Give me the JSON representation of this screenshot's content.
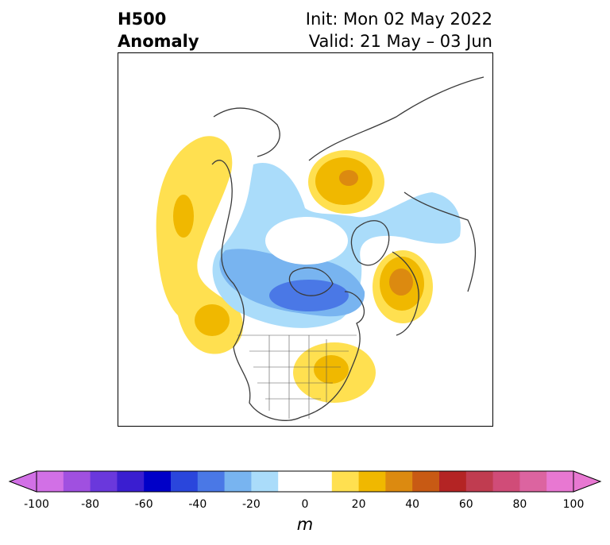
{
  "header": {
    "title_line1": "H500",
    "title_line2": "Anomaly",
    "init_label": "Init: Mon 02 May 2022",
    "valid_label": "Valid: 21 May – 03 Jun"
  },
  "map": {
    "projection": "north-polar-stereographic",
    "field": "500 hPa geopotential height anomaly",
    "features": [
      {
        "name": "positive anomaly over NE Pacific / Alaska coast",
        "sign": "positive",
        "peak_range": "20-30"
      },
      {
        "name": "positive anomaly over Scandinavia / Barents",
        "sign": "positive",
        "peak_range": "20-30"
      },
      {
        "name": "positive anomaly over eastern US",
        "sign": "positive",
        "peak_range": "20-30"
      },
      {
        "name": "positive anomaly over central Siberia",
        "sign": "positive",
        "peak_range": "30-40"
      },
      {
        "name": "negative anomaly over Hudson Bay / Canada",
        "sign": "negative",
        "peak_range": "-40 to -50"
      },
      {
        "name": "negative anomaly over Greenland / Arctic",
        "sign": "negative",
        "peak_range": "-20 to -30"
      },
      {
        "name": "negative anomaly over NE Asia",
        "sign": "negative",
        "peak_range": "-10 to -20"
      }
    ]
  },
  "colorbar": {
    "unit": "m",
    "ticks": [
      "-100",
      "-80",
      "-60",
      "-40",
      "-20",
      "0",
      "20",
      "40",
      "60",
      "80",
      "100"
    ],
    "colors": [
      "#d270e6",
      "#a050e0",
      "#6a38dc",
      "#3a1ed0",
      "#0000c8",
      "#2a46dc",
      "#4a78e6",
      "#78b4f0",
      "#aadcfa",
      "#ffffff",
      "#ffffff",
      "#ffe050",
      "#f0b800",
      "#dc8a10",
      "#c85a14",
      "#b42424",
      "#c03c50",
      "#d04c78",
      "#dc64a0",
      "#e878d2"
    ],
    "extend_min_color": "#d270e6",
    "extend_max_color": "#e878d2"
  }
}
